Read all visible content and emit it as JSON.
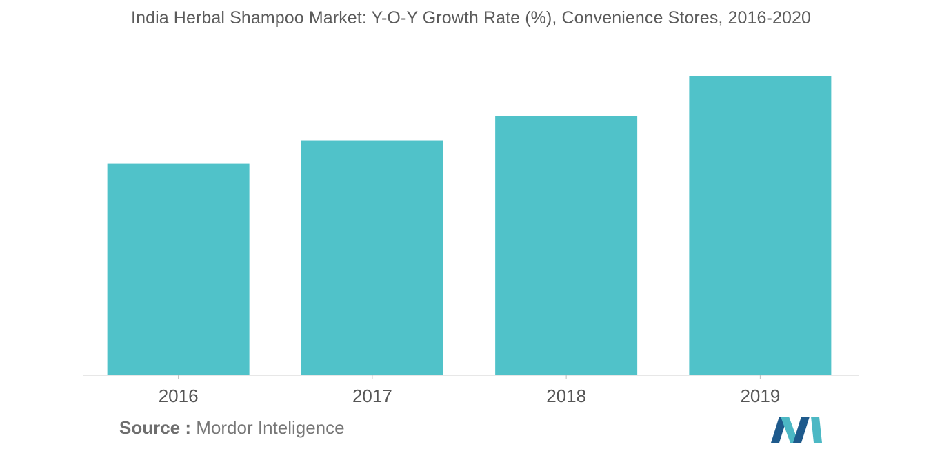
{
  "chart_data": {
    "type": "bar",
    "title": "India Herbal Shampoo Market: Y-O-Y Growth Rate (%), Convenience Stores, 2016-2020",
    "xlabel": "",
    "ylabel": "",
    "categories": [
      "2016",
      "2017",
      "2018",
      "2019"
    ],
    "values": [
      5.3,
      5.87,
      6.5,
      7.5
    ],
    "ylim": [
      0,
      7.5
    ],
    "grid": false,
    "legend": "none",
    "bar_color": "#50c2c9"
  },
  "source": {
    "label": "Source :",
    "text": "Mordor Inteligence"
  },
  "logo": {
    "icon": "mordor-intelligence-logo",
    "colors": [
      "#1e5a8c",
      "#4cb8c4"
    ]
  }
}
